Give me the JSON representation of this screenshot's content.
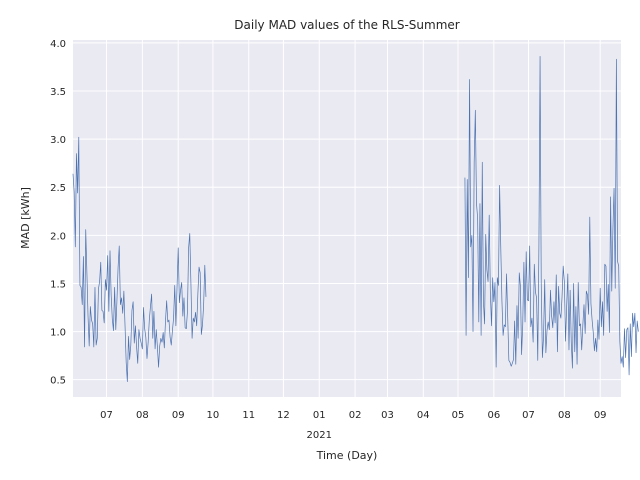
{
  "chart_data": {
    "type": "line",
    "title": "Daily MAD values of the RLS-Summer",
    "xlabel": "Time (Day)",
    "ylabel": "MAD [kWh]",
    "x_domain": [
      "2020-06-02",
      "2021-09-19"
    ],
    "ylim": [
      0.32,
      4.03
    ],
    "y_ticks": [
      0.5,
      1.0,
      1.5,
      2.0,
      2.5,
      3.0,
      3.5,
      4.0
    ],
    "y_tick_labels": [
      "0.5",
      "1.0",
      "1.5",
      "2.0",
      "2.5",
      "3.0",
      "3.5",
      "4.0"
    ],
    "x_ticks": [
      {
        "date": "2020-07-01",
        "label": "07"
      },
      {
        "date": "2020-08-01",
        "label": "08"
      },
      {
        "date": "2020-09-01",
        "label": "09"
      },
      {
        "date": "2020-10-01",
        "label": "10"
      },
      {
        "date": "2020-11-01",
        "label": "11"
      },
      {
        "date": "2020-12-01",
        "label": "12"
      },
      {
        "date": "2021-01-01",
        "label": "01"
      },
      {
        "date": "2021-02-01",
        "label": "02"
      },
      {
        "date": "2021-03-01",
        "label": "03"
      },
      {
        "date": "2021-04-01",
        "label": "04"
      },
      {
        "date": "2021-05-01",
        "label": "05"
      },
      {
        "date": "2021-06-01",
        "label": "06"
      },
      {
        "date": "2021-07-01",
        "label": "07"
      },
      {
        "date": "2021-08-01",
        "label": "08"
      },
      {
        "date": "2021-09-01",
        "label": "09"
      }
    ],
    "year_label": {
      "date": "2021-01-01",
      "label": "2021"
    },
    "grid": true,
    "background": "#eaeaf2",
    "line_color": "#4c72b0",
    "series": [
      {
        "segments": [
          {
            "start": "2020-06-02",
            "values": [
              2.64,
              2.45,
              1.88,
              2.85,
              2.44,
              3.02,
              1.48,
              1.46,
              1.28,
              1.78,
              0.84,
              2.06,
              1.62,
              1.16,
              0.85,
              1.26,
              1.12,
              1.08,
              0.84,
              1.46,
              0.86,
              0.93,
              1.44,
              1.52,
              1.72,
              1.22,
              1.21,
              1.09,
              1.54,
              1.43,
              1.79,
              1.21,
              1.84,
              1.38,
              1.13,
              1.01,
              1.46,
              1.02,
              1.32,
              1.67,
              1.89,
              1.28,
              1.35,
              1.19,
              1.42,
              1.06,
              0.68,
              0.48,
              0.95,
              0.71,
              0.86,
              1.22,
              1.31,
              0.88,
              1.06,
              0.84,
              0.67,
              1.02,
              0.93,
              0.88,
              0.82,
              1.25,
              1.03,
              0.94,
              0.72,
              0.89,
              1.12,
              1.26,
              1.39,
              0.93,
              1.21,
              0.82,
              1.02,
              0.84,
              0.63,
              0.85,
              0.93,
              0.89,
              0.99,
              0.83,
              1.11,
              1.32,
              1.1,
              1.12,
              0.94,
              0.86,
              1.01,
              1.14,
              1.48,
              1.06,
              1.46,
              1.87,
              1.3,
              1.43,
              1.51,
              1.16,
              1.35,
              1.04,
              1.03,
              1.21,
              1.87,
              2.02,
              1.5,
              0.93,
              1.14,
              1.1,
              1.2,
              1.06,
              1.39,
              1.67,
              1.61,
              0.97,
              1.07,
              1.28,
              1.69,
              1.36
            ]
          },
          {
            "start": "2021-05-07",
            "values": [
              2.6,
              0.96,
              2.58,
              1.56,
              3.62,
              1.88,
              2.0,
              1.0,
              2.76,
              3.3,
              2.33,
              2.18,
              1.1,
              2.33,
              0.96,
              2.76,
              1.31,
              1.08,
              2.01,
              1.64,
              1.52,
              2.21,
              1.4,
              1.06,
              1.56,
              1.31,
              1.51,
              0.63,
              1.56,
              1.48,
              2.52,
              1.88,
              1.32,
              0.96,
              1.07,
              1.05,
              1.6,
              1.15,
              0.7,
              0.68,
              0.64,
              0.67,
              0.71,
              1.11,
              0.66,
              1.27,
              0.93,
              1.61,
              1.47,
              0.76,
              1.07,
              1.72,
              1.1,
              1.83,
              1.33,
              1.32,
              1.89,
              1.05,
              1.14,
              0.89,
              1.7,
              1.41,
              1.35,
              0.7,
              1.89,
              3.86,
              1.5,
              0.73,
              0.94,
              1.54,
              0.78,
              1.01,
              1.1,
              1.02,
              1.43,
              1.16,
              1.04,
              1.31,
              1.09,
              1.59,
              0.79,
              1.47,
              1.19,
              1.14,
              1.36,
              1.68,
              1.52,
              0.9,
              1.26,
              1.6,
              0.81,
              1.43,
              0.88,
              0.62,
              1.5,
              0.79,
              1.26,
              0.66,
              1.51,
              1.06,
              1.08,
              0.81,
              1.07,
              1.28,
              0.98,
              1.42,
              1.38,
              1.18,
              2.19,
              1.29,
              1.12,
              0.99,
              0.8,
              0.93,
              0.79,
              1.12,
              0.92,
              1.45,
              1.05,
              1.31,
              0.96,
              1.7,
              1.68,
              1.21,
              1.49,
              0.99,
              2.4,
              1.42,
              2.06,
              2.49,
              1.45,
              3.83,
              1.73,
              1.68,
              0.9,
              0.67,
              0.74,
              0.63,
              1.03,
              0.73,
              1.02,
              1.04,
              0.55,
              1.08,
              0.74,
              1.19,
              1.05,
              1.19,
              0.78,
              1.11,
              1.0
            ]
          }
        ]
      }
    ]
  }
}
